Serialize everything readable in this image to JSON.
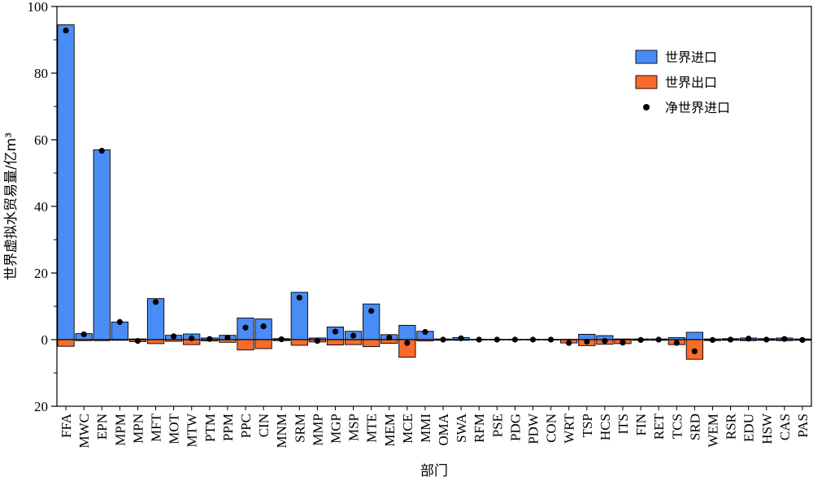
{
  "chart_data": {
    "type": "bar",
    "xlabel": "部门",
    "ylabel": "世界虚拟水贸易量/亿m³",
    "ylim": [
      -20,
      100
    ],
    "yticks": [
      -20,
      0,
      20,
      40,
      60,
      80,
      100
    ],
    "ytick_labels": [
      "20",
      "0",
      "20",
      "40",
      "60",
      "80",
      "100"
    ],
    "categories": [
      "FFA",
      "MWC",
      "EPN",
      "MPM",
      "MPN",
      "MFT",
      "MOT",
      "MTW",
      "PTM",
      "PPM",
      "PPC",
      "CIN",
      "MNM",
      "SRM",
      "MMP",
      "MGP",
      "MSP",
      "MTE",
      "MEM",
      "MCE",
      "MMI",
      "OMA",
      "SWA",
      "RFM",
      "PSE",
      "PDG",
      "PDW",
      "CON",
      "WRT",
      "TSP",
      "HCS",
      "ITS",
      "FIN",
      "RET",
      "TCS",
      "SRD",
      "WEM",
      "RSR",
      "EDU",
      "HSW",
      "CAS",
      "PAS"
    ],
    "series": [
      {
        "name": "世界进口",
        "color": "#4a8cf5",
        "values": [
          94.5,
          1.8,
          57,
          5.3,
          0.2,
          12.3,
          1.3,
          1.7,
          0.5,
          1.3,
          6.5,
          6.2,
          0.3,
          14.2,
          0.5,
          3.8,
          2.5,
          10.7,
          1.5,
          4.3,
          2.5,
          0.2,
          0.6,
          0.1,
          0.1,
          0.1,
          0.1,
          0.1,
          0.1,
          1.6,
          1.2,
          0.2,
          0.2,
          0.2,
          0.6,
          2.2,
          0.2,
          0.3,
          0.5,
          0.3,
          0.5,
          0.2
        ]
      },
      {
        "name": "世界出口",
        "color": "#f96b2a",
        "values": [
          -2,
          -0.3,
          -0.3,
          -0.2,
          -0.6,
          -1.2,
          -0.5,
          -1.5,
          -0.4,
          -0.8,
          -3.1,
          -2.7,
          -0.3,
          -1.7,
          -0.7,
          -1.6,
          -1.5,
          -2.1,
          -1.1,
          -5.3,
          -0.4,
          -0.2,
          -0.2,
          -0.1,
          -0.1,
          -0.1,
          -0.1,
          -0.1,
          -1,
          -1.8,
          -1.4,
          -1.2,
          -0.2,
          -0.2,
          -1.5,
          -5.9,
          -0.3,
          -0.2,
          -0.3,
          -0.2,
          -0.3,
          -0.2
        ]
      },
      {
        "name": "净世界进口",
        "color": "#000000",
        "values": [
          92.8,
          1.6,
          56.7,
          5.3,
          -0.4,
          11.3,
          1,
          0.4,
          0.2,
          0.6,
          3.6,
          4,
          0.1,
          12.6,
          -0.4,
          2.4,
          1.2,
          8.6,
          0.6,
          -1,
          2.3,
          0,
          0.4,
          0,
          0,
          0,
          0,
          0,
          -1,
          -0.6,
          -0.4,
          -0.9,
          -0.1,
          0,
          -1,
          -3.5,
          -0.1,
          0,
          0.3,
          0,
          0.2,
          -0.1
        ]
      }
    ],
    "legend": {
      "position": "top-right",
      "entries": [
        "世界进口",
        "世界出口",
        "净世界进口"
      ]
    },
    "grid": false
  }
}
